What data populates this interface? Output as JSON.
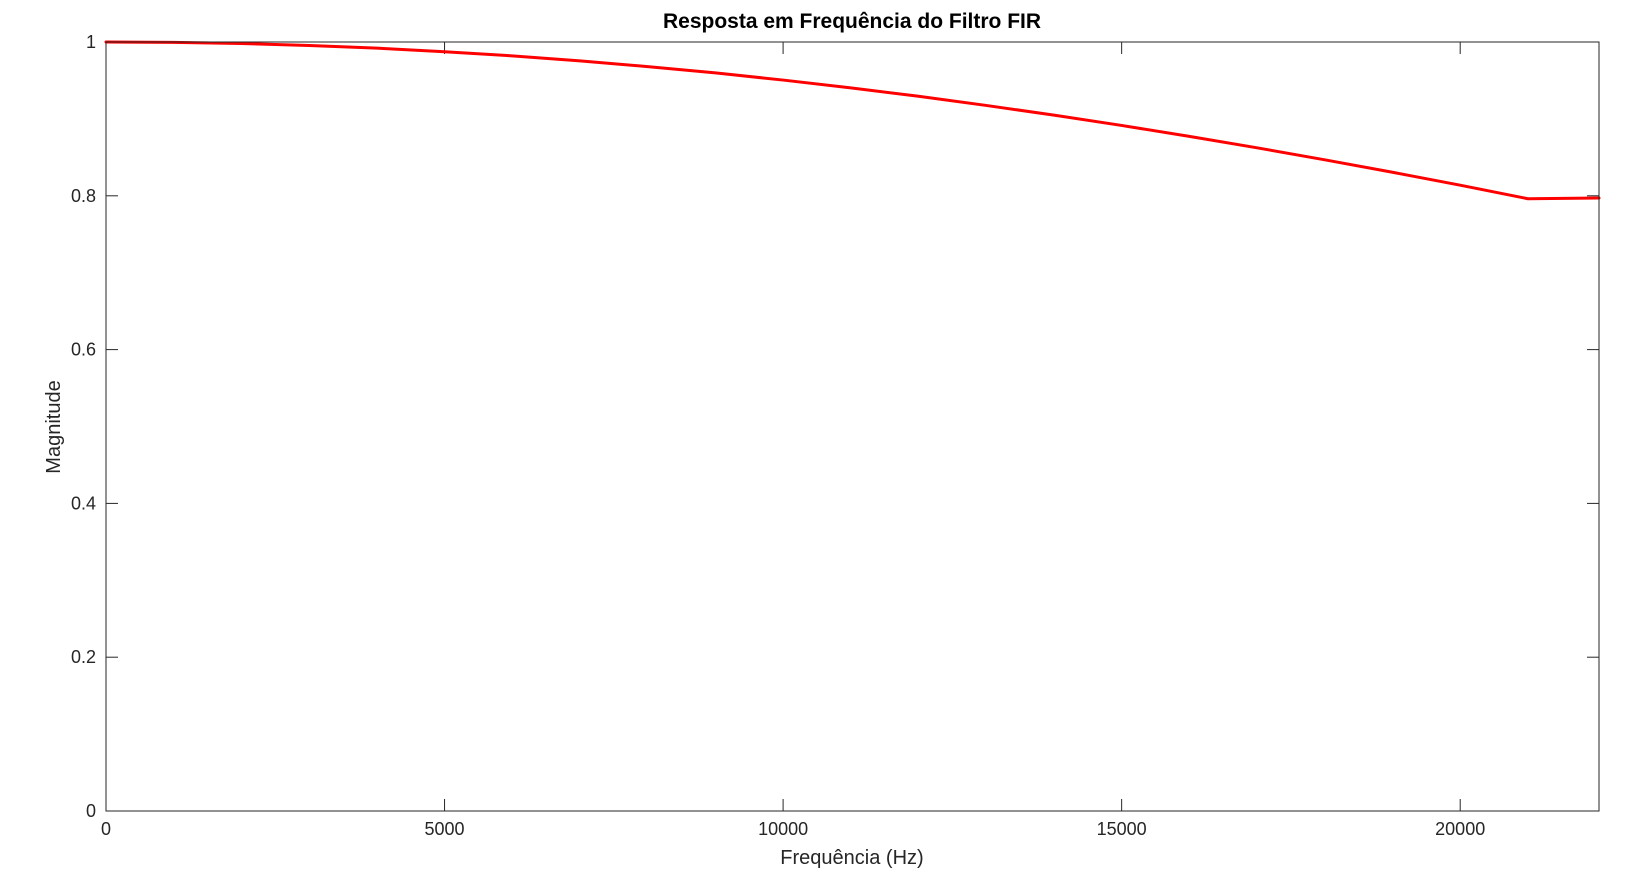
{
  "chart_data": {
    "type": "line",
    "title": "Resposta em Frequência do Filtro FIR",
    "xlabel": "Frequência (Hz)",
    "ylabel": "Magnitude",
    "xlim": [
      0,
      22050
    ],
    "ylim": [
      0,
      1
    ],
    "xticks": [
      0,
      5000,
      10000,
      15000,
      20000
    ],
    "xtick_labels": [
      "0",
      "5000",
      "10000",
      "15000",
      "20000"
    ],
    "yticks": [
      0,
      0.2,
      0.4,
      0.6,
      0.8,
      1
    ],
    "ytick_labels": [
      "0",
      "0.2",
      "0.4",
      "0.6",
      "0.8",
      "1"
    ],
    "grid": false,
    "legend": "none",
    "series": [
      {
        "color": "#ff0000",
        "x": [
          0,
          1000,
          2000,
          3000,
          4000,
          5000,
          6000,
          7000,
          8000,
          9000,
          10000,
          11000,
          12000,
          13000,
          14000,
          15000,
          16000,
          17000,
          18000,
          19000,
          20000,
          21000,
          22050
        ],
        "values": [
          1.0,
          0.9995,
          0.998,
          0.9955,
          0.992,
          0.9874,
          0.982,
          0.9755,
          0.968,
          0.9598,
          0.9505,
          0.9404,
          0.9294,
          0.9175,
          0.9049,
          0.8915,
          0.8773,
          0.8624,
          0.8468,
          0.8306,
          0.8138,
          0.7962,
          0.7972
        ]
      }
    ]
  }
}
